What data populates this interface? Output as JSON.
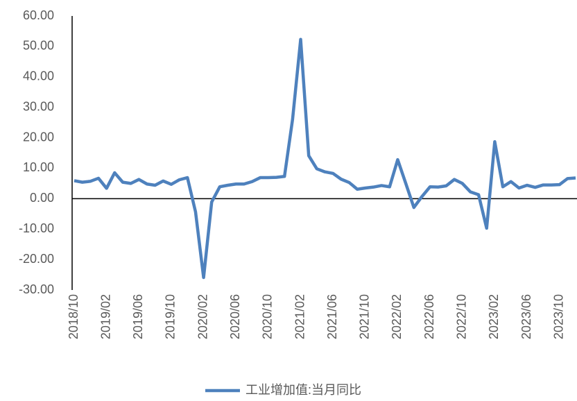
{
  "chart_data": {
    "type": "line",
    "categories": [
      "2018/10",
      null,
      null,
      null,
      "2019/02",
      null,
      null,
      null,
      "2019/06",
      null,
      null,
      null,
      "2019/10",
      null,
      null,
      null,
      "2020/02",
      null,
      null,
      null,
      "2020/06",
      null,
      null,
      null,
      "2020/10",
      null,
      null,
      null,
      "2021/02",
      null,
      null,
      null,
      "2021/06",
      null,
      null,
      null,
      "2021/10",
      null,
      null,
      null,
      "2022/02",
      null,
      null,
      null,
      "2022/06",
      null,
      null,
      null,
      "2022/10",
      null,
      null,
      null,
      "2023/02",
      null,
      null,
      null,
      "2023/06",
      null,
      null,
      null,
      "2023/10",
      null,
      null
    ],
    "series": [
      {
        "name": "工业增加值:当月同比",
        "color": "#4e81bd",
        "values": [
          5.9,
          5.4,
          5.7,
          6.7,
          3.4,
          8.5,
          5.4,
          5.0,
          6.3,
          4.8,
          4.4,
          5.8,
          4.7,
          6.2,
          6.9,
          -4.3,
          -25.9,
          -1.1,
          3.9,
          4.4,
          4.8,
          4.8,
          5.6,
          6.9,
          6.9,
          7.0,
          7.3,
          26.0,
          52.3,
          14.1,
          9.8,
          8.8,
          8.3,
          6.4,
          5.3,
          3.1,
          3.5,
          3.8,
          4.3,
          3.9,
          12.8,
          5.0,
          -2.9,
          0.7,
          3.9,
          3.8,
          4.2,
          6.3,
          5.0,
          2.2,
          1.3,
          -9.7,
          18.7,
          3.9,
          5.6,
          3.5,
          4.4,
          3.7,
          4.5,
          4.5,
          4.6,
          6.6,
          6.8
        ]
      }
    ],
    "ylim": [
      -30,
      60
    ],
    "yticks": [
      {
        "value": -30,
        "label": "-30.00"
      },
      {
        "value": -20,
        "label": "-20.00"
      },
      {
        "value": -10,
        "label": "-10.00"
      },
      {
        "value": 0,
        "label": "0.00"
      },
      {
        "value": 10,
        "label": "10.00"
      },
      {
        "value": 20,
        "label": "20.00"
      },
      {
        "value": 30,
        "label": "30.00"
      },
      {
        "value": 40,
        "label": "40.00"
      },
      {
        "value": 50,
        "label": "50.00"
      },
      {
        "value": 60,
        "label": "60.00"
      }
    ],
    "grid": false,
    "legend": "bottom"
  }
}
